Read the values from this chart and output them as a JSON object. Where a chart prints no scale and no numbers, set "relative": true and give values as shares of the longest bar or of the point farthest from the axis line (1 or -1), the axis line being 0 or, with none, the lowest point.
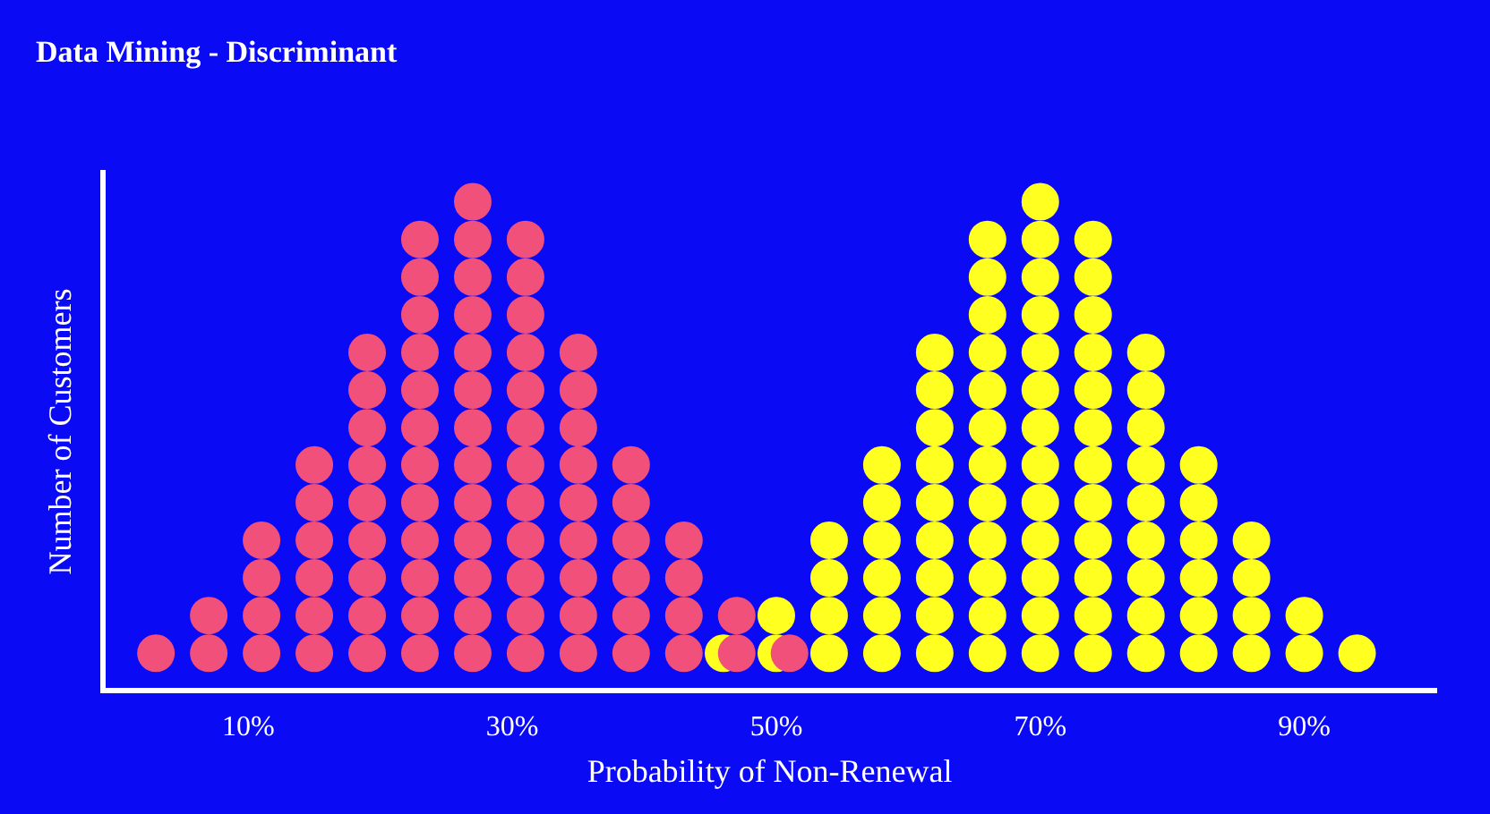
{
  "chart_data": {
    "type": "scatter",
    "title": "Data Mining - Discriminant",
    "xlabel": "Probability of Non-Renewal",
    "ylabel": "Number of Customers",
    "xlim": [
      -1,
      100
    ],
    "xticks": [
      {
        "value": 10,
        "label": "10%"
      },
      {
        "value": 30,
        "label": "30%"
      },
      {
        "value": 50,
        "label": "50%"
      },
      {
        "value": 70,
        "label": "70%"
      },
      {
        "value": 90,
        "label": "90%"
      }
    ],
    "relative": true,
    "grid": false,
    "legend": false,
    "marker": "circle",
    "series": [
      {
        "color": "#f0507a",
        "x": [
          3,
          7,
          7,
          11,
          11,
          11,
          11,
          15,
          15,
          15,
          15,
          15,
          15,
          19,
          19,
          19,
          19,
          19,
          19,
          19,
          19,
          19,
          23,
          23,
          23,
          23,
          23,
          23,
          23,
          23,
          23,
          23,
          23,
          23,
          27,
          27,
          27,
          27,
          27,
          27,
          27,
          27,
          27,
          27,
          27,
          27,
          27,
          31,
          31,
          31,
          31,
          31,
          31,
          31,
          31,
          31,
          31,
          31,
          31,
          35,
          35,
          35,
          35,
          35,
          35,
          35,
          35,
          35,
          39,
          39,
          39,
          39,
          39,
          39,
          43,
          43,
          43,
          43,
          47,
          47,
          51
        ],
        "values": [
          0.077,
          0.077,
          0.154,
          0.077,
          0.154,
          0.231,
          0.308,
          0.077,
          0.154,
          0.231,
          0.308,
          0.385,
          0.462,
          0.077,
          0.154,
          0.231,
          0.308,
          0.385,
          0.462,
          0.538,
          0.615,
          0.692,
          0.077,
          0.154,
          0.231,
          0.308,
          0.385,
          0.462,
          0.538,
          0.615,
          0.692,
          0.769,
          0.846,
          0.923,
          0.077,
          0.154,
          0.231,
          0.308,
          0.385,
          0.462,
          0.538,
          0.615,
          0.692,
          0.769,
          0.846,
          0.923,
          1,
          0.077,
          0.154,
          0.231,
          0.308,
          0.385,
          0.462,
          0.538,
          0.615,
          0.692,
          0.769,
          0.846,
          0.923,
          0.077,
          0.154,
          0.231,
          0.308,
          0.385,
          0.462,
          0.538,
          0.615,
          0.692,
          0.077,
          0.154,
          0.231,
          0.308,
          0.385,
          0.462,
          0.077,
          0.154,
          0.231,
          0.308,
          0.077,
          0.154,
          0.077
        ]
      },
      {
        "color": "#ffff20",
        "x": [
          46,
          50,
          50,
          54,
          54,
          54,
          54,
          58,
          58,
          58,
          58,
          58,
          58,
          62,
          62,
          62,
          62,
          62,
          62,
          62,
          62,
          62,
          66,
          66,
          66,
          66,
          66,
          66,
          66,
          66,
          66,
          66,
          66,
          66,
          70,
          70,
          70,
          70,
          70,
          70,
          70,
          70,
          70,
          70,
          70,
          70,
          70,
          74,
          74,
          74,
          74,
          74,
          74,
          74,
          74,
          74,
          74,
          74,
          74,
          78,
          78,
          78,
          78,
          78,
          78,
          78,
          78,
          78,
          82,
          82,
          82,
          82,
          82,
          82,
          86,
          86,
          86,
          86,
          90,
          90,
          94
        ],
        "values": [
          0.077,
          0.077,
          0.154,
          0.077,
          0.154,
          0.231,
          0.308,
          0.077,
          0.154,
          0.231,
          0.308,
          0.385,
          0.462,
          0.077,
          0.154,
          0.231,
          0.308,
          0.385,
          0.462,
          0.538,
          0.615,
          0.692,
          0.077,
          0.154,
          0.231,
          0.308,
          0.385,
          0.462,
          0.538,
          0.615,
          0.692,
          0.769,
          0.846,
          0.923,
          0.077,
          0.154,
          0.231,
          0.308,
          0.385,
          0.462,
          0.538,
          0.615,
          0.692,
          0.769,
          0.846,
          0.923,
          1,
          0.077,
          0.154,
          0.231,
          0.308,
          0.385,
          0.462,
          0.538,
          0.615,
          0.692,
          0.769,
          0.846,
          0.923,
          0.077,
          0.154,
          0.231,
          0.308,
          0.385,
          0.462,
          0.538,
          0.615,
          0.692,
          0.077,
          0.154,
          0.231,
          0.308,
          0.385,
          0.462,
          0.077,
          0.154,
          0.231,
          0.308,
          0.077,
          0.154,
          0.077
        ]
      }
    ]
  }
}
